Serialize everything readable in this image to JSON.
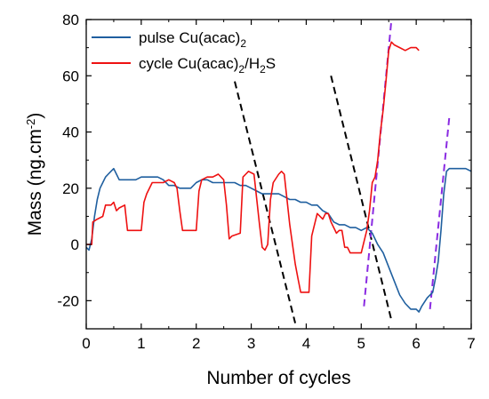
{
  "chart_data": {
    "type": "line",
    "xlabel": "Number of cycles",
    "ylabel_main": "Mass (ng.cm",
    "ylabel_sup": "-2",
    "ylabel_close": ")",
    "xlim": [
      0,
      7
    ],
    "ylim": [
      -30,
      80
    ],
    "x_ticks": [
      0,
      1,
      2,
      3,
      4,
      5,
      6,
      7
    ],
    "y_ticks": [
      -20,
      0,
      20,
      40,
      60,
      80
    ],
    "grid": false,
    "legend_position": "top-left",
    "legend": [
      {
        "parts": [
          {
            "t": "pulse Cu(acac)",
            "s": "n"
          },
          {
            "t": "2",
            "s": "sub"
          }
        ],
        "color": "#1f5f9f"
      },
      {
        "parts": [
          {
            "t": "cycle Cu(acac)",
            "s": "n"
          },
          {
            "t": "2",
            "s": "sub"
          },
          {
            "t": "/H",
            "s": "n"
          },
          {
            "t": "2",
            "s": "sub"
          },
          {
            "t": "S",
            "s": "n"
          }
        ],
        "color": "#ee1111"
      }
    ],
    "series": [
      {
        "color": "#1f5f9f",
        "points": [
          [
            0,
            -1
          ],
          [
            0.05,
            -2
          ],
          [
            0.1,
            2
          ],
          [
            0.15,
            10
          ],
          [
            0.2,
            16
          ],
          [
            0.25,
            20
          ],
          [
            0.3,
            22
          ],
          [
            0.35,
            24
          ],
          [
            0.4,
            25
          ],
          [
            0.45,
            26
          ],
          [
            0.5,
            27
          ],
          [
            0.55,
            25
          ],
          [
            0.6,
            23
          ],
          [
            0.7,
            23
          ],
          [
            0.8,
            23
          ],
          [
            0.9,
            23
          ],
          [
            1.0,
            24
          ],
          [
            1.1,
            24
          ],
          [
            1.2,
            24
          ],
          [
            1.3,
            24
          ],
          [
            1.4,
            23
          ],
          [
            1.5,
            21
          ],
          [
            1.6,
            21
          ],
          [
            1.7,
            20
          ],
          [
            1.8,
            20
          ],
          [
            1.9,
            20
          ],
          [
            2.0,
            22
          ],
          [
            2.1,
            23
          ],
          [
            2.2,
            23
          ],
          [
            2.3,
            22
          ],
          [
            2.4,
            22
          ],
          [
            2.5,
            22
          ],
          [
            2.6,
            22
          ],
          [
            2.7,
            22
          ],
          [
            2.8,
            21
          ],
          [
            2.9,
            21
          ],
          [
            3.0,
            20
          ],
          [
            3.1,
            19
          ],
          [
            3.2,
            18
          ],
          [
            3.3,
            18
          ],
          [
            3.4,
            18
          ],
          [
            3.5,
            18
          ],
          [
            3.6,
            17
          ],
          [
            3.7,
            16
          ],
          [
            3.8,
            16
          ],
          [
            3.9,
            15
          ],
          [
            4.0,
            15
          ],
          [
            4.1,
            14
          ],
          [
            4.2,
            14
          ],
          [
            4.3,
            12
          ],
          [
            4.4,
            11
          ],
          [
            4.5,
            8
          ],
          [
            4.6,
            7
          ],
          [
            4.7,
            7
          ],
          [
            4.8,
            6
          ],
          [
            4.9,
            6
          ],
          [
            5.0,
            5
          ],
          [
            5.1,
            6
          ],
          [
            5.2,
            4
          ],
          [
            5.3,
            0
          ],
          [
            5.4,
            -3
          ],
          [
            5.5,
            -8
          ],
          [
            5.6,
            -13
          ],
          [
            5.7,
            -18
          ],
          [
            5.8,
            -21
          ],
          [
            5.9,
            -23
          ],
          [
            6.0,
            -23
          ],
          [
            6.05,
            -24
          ],
          [
            6.1,
            -22
          ],
          [
            6.2,
            -19
          ],
          [
            6.3,
            -17
          ],
          [
            6.35,
            -12
          ],
          [
            6.4,
            -6
          ],
          [
            6.45,
            5
          ],
          [
            6.5,
            18
          ],
          [
            6.55,
            26
          ],
          [
            6.6,
            27
          ],
          [
            6.7,
            27
          ],
          [
            6.8,
            27
          ],
          [
            6.9,
            27
          ],
          [
            7.0,
            26
          ]
        ]
      },
      {
        "color": "#ee1111",
        "points": [
          [
            0,
            0
          ],
          [
            0.1,
            0
          ],
          [
            0.12,
            8
          ],
          [
            0.2,
            9
          ],
          [
            0.3,
            10
          ],
          [
            0.35,
            14
          ],
          [
            0.45,
            14
          ],
          [
            0.5,
            15
          ],
          [
            0.55,
            12
          ],
          [
            0.6,
            13
          ],
          [
            0.7,
            14
          ],
          [
            0.75,
            5
          ],
          [
            0.9,
            5
          ],
          [
            1.0,
            5
          ],
          [
            1.05,
            15
          ],
          [
            1.1,
            18
          ],
          [
            1.2,
            22
          ],
          [
            1.3,
            22
          ],
          [
            1.4,
            22
          ],
          [
            1.5,
            23
          ],
          [
            1.6,
            22
          ],
          [
            1.65,
            20
          ],
          [
            1.7,
            12
          ],
          [
            1.75,
            5
          ],
          [
            1.9,
            5
          ],
          [
            2.0,
            5
          ],
          [
            2.05,
            19
          ],
          [
            2.1,
            23
          ],
          [
            2.2,
            24
          ],
          [
            2.3,
            24
          ],
          [
            2.4,
            25
          ],
          [
            2.5,
            23
          ],
          [
            2.55,
            14
          ],
          [
            2.6,
            2
          ],
          [
            2.65,
            3
          ],
          [
            2.8,
            4
          ],
          [
            2.85,
            24
          ],
          [
            2.9,
            25
          ],
          [
            2.95,
            26
          ],
          [
            3.05,
            25
          ],
          [
            3.1,
            16
          ],
          [
            3.15,
            7
          ],
          [
            3.2,
            -1
          ],
          [
            3.25,
            -2
          ],
          [
            3.3,
            0
          ],
          [
            3.35,
            16
          ],
          [
            3.4,
            22
          ],
          [
            3.5,
            25
          ],
          [
            3.55,
            26
          ],
          [
            3.6,
            25
          ],
          [
            3.65,
            16
          ],
          [
            3.7,
            7
          ],
          [
            3.75,
            0
          ],
          [
            3.8,
            -7
          ],
          [
            3.85,
            -12
          ],
          [
            3.9,
            -17
          ],
          [
            4.0,
            -17
          ],
          [
            4.05,
            -17
          ],
          [
            4.1,
            3
          ],
          [
            4.15,
            7
          ],
          [
            4.2,
            11
          ],
          [
            4.3,
            9
          ],
          [
            4.35,
            11
          ],
          [
            4.4,
            11
          ],
          [
            4.45,
            8
          ],
          [
            4.55,
            4
          ],
          [
            4.6,
            5
          ],
          [
            4.65,
            5
          ],
          [
            4.7,
            -1
          ],
          [
            4.75,
            -1
          ],
          [
            4.8,
            -3
          ],
          [
            4.9,
            -3
          ],
          [
            5.0,
            -3
          ],
          [
            5.05,
            1
          ],
          [
            5.1,
            5
          ],
          [
            5.15,
            12
          ],
          [
            5.2,
            22
          ],
          [
            5.25,
            24
          ],
          [
            5.3,
            30
          ],
          [
            5.35,
            40
          ],
          [
            5.4,
            48
          ],
          [
            5.45,
            58
          ],
          [
            5.5,
            69
          ],
          [
            5.55,
            72
          ],
          [
            5.6,
            71
          ],
          [
            5.7,
            70
          ],
          [
            5.8,
            69
          ],
          [
            5.9,
            70
          ],
          [
            6.0,
            70
          ],
          [
            6.05,
            69
          ]
        ]
      }
    ],
    "fit_lines": [
      {
        "color": "#000000",
        "style": "dashed",
        "points": [
          [
            2.7,
            58
          ],
          [
            3.8,
            -28
          ]
        ]
      },
      {
        "color": "#000000",
        "style": "dashed",
        "points": [
          [
            4.45,
            60
          ],
          [
            5.55,
            -27
          ]
        ]
      },
      {
        "color": "#8a2be2",
        "style": "dashed",
        "points": [
          [
            5.05,
            -22
          ],
          [
            5.55,
            80
          ]
        ]
      },
      {
        "color": "#8a2be2",
        "style": "dashed",
        "points": [
          [
            6.25,
            -23
          ],
          [
            6.6,
            45
          ]
        ]
      }
    ]
  }
}
